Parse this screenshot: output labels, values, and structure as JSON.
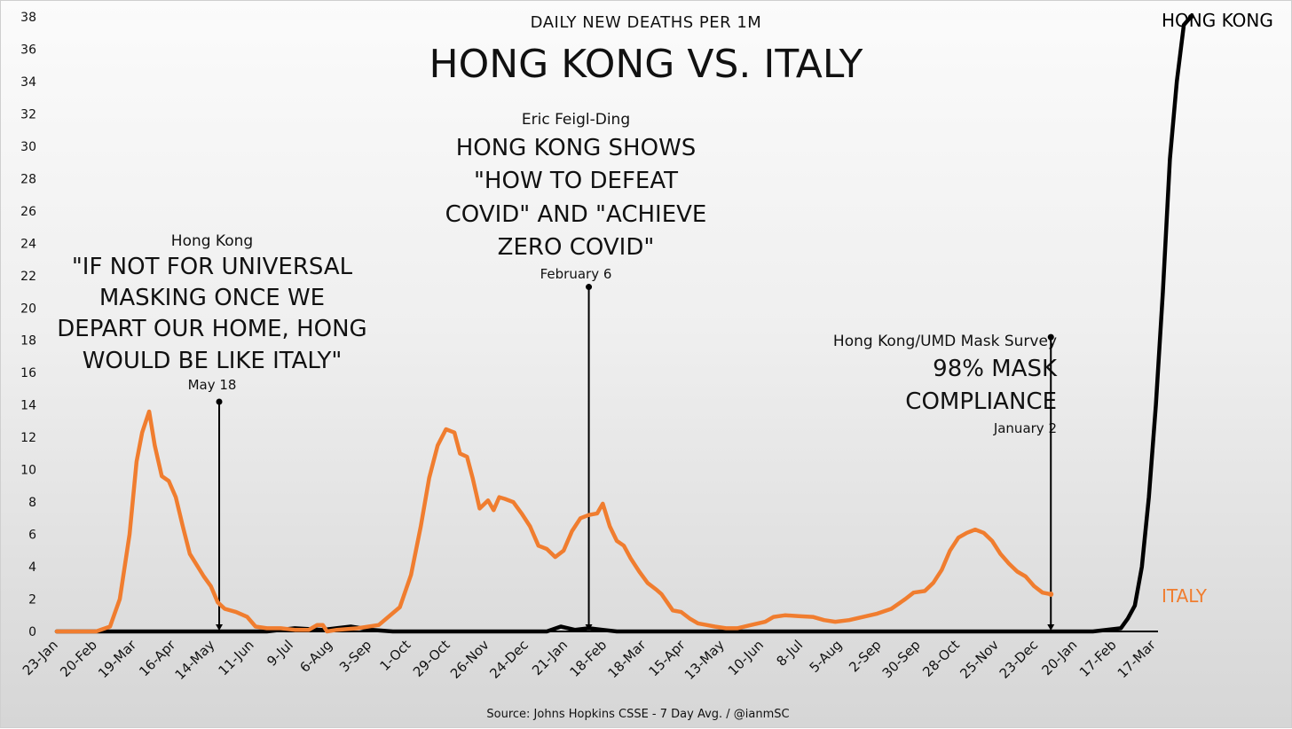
{
  "chart_data": {
    "type": "line",
    "subtitle": "DAILY NEW DEATHS PER 1M",
    "title": "HONG KONG VS. ITALY",
    "source": "Source: Johns Hopkins CSSE - 7 Day Avg. / @ianmSC",
    "ylim": [
      0,
      38
    ],
    "y_ticks": [
      "0",
      "2",
      "4",
      "6",
      "8",
      "10",
      "12",
      "14",
      "16",
      "18",
      "20",
      "22",
      "24",
      "26",
      "28",
      "30",
      "32",
      "34",
      "36",
      "38"
    ],
    "x_ticks": [
      "23-Jan",
      "20-Feb",
      "19-Mar",
      "16-Apr",
      "14-May",
      "11-Jun",
      "9-Jul",
      "6-Aug",
      "3-Sep",
      "1-Oct",
      "29-Oct",
      "26-Nov",
      "24-Dec",
      "21-Jan",
      "18-Feb",
      "18-Mar",
      "15-Apr",
      "13-May",
      "10-Jun",
      "8-Jul",
      "5-Aug",
      "2-Sep",
      "30-Sep",
      "28-Oct",
      "25-Nov",
      "23-Dec",
      "20-Jan",
      "17-Feb",
      "17-Mar"
    ],
    "series": [
      {
        "name": "HONG KONG",
        "color": "#000000",
        "points": [
          [
            0,
            0
          ],
          [
            150,
            0
          ],
          [
            170,
            0.2
          ],
          [
            190,
            0.1
          ],
          [
            210,
            0.3
          ],
          [
            225,
            0.1
          ],
          [
            240,
            0
          ],
          [
            350,
            0
          ],
          [
            360,
            0.3
          ],
          [
            370,
            0.1
          ],
          [
            380,
            0.2
          ],
          [
            390,
            0.1
          ],
          [
            400,
            0
          ],
          [
            740,
            0
          ],
          [
            760,
            0.2
          ],
          [
            765,
            0.8
          ],
          [
            770,
            1.6
          ],
          [
            775,
            4
          ],
          [
            780,
            8.3
          ],
          [
            785,
            14
          ],
          [
            790,
            21
          ],
          [
            795,
            29.2
          ],
          [
            800,
            34
          ],
          [
            805,
            37.5
          ],
          [
            810,
            38
          ]
        ]
      },
      {
        "name": "ITALY",
        "color": "#F07D2F",
        "points": [
          [
            0,
            0
          ],
          [
            28,
            0
          ],
          [
            38,
            0.3
          ],
          [
            45,
            2
          ],
          [
            52,
            6
          ],
          [
            57,
            10.5
          ],
          [
            61,
            12.3
          ],
          [
            66,
            13.6
          ],
          [
            70,
            11.5
          ],
          [
            75,
            9.6
          ],
          [
            80,
            9.3
          ],
          [
            85,
            8.3
          ],
          [
            90,
            6.5
          ],
          [
            95,
            4.8
          ],
          [
            100,
            4.1
          ],
          [
            105,
            3.4
          ],
          [
            110,
            2.8
          ],
          [
            115,
            1.8
          ],
          [
            120,
            1.4
          ],
          [
            128,
            1.2
          ],
          [
            136,
            0.9
          ],
          [
            142,
            0.3
          ],
          [
            150,
            0.2
          ],
          [
            160,
            0.2
          ],
          [
            170,
            0.1
          ],
          [
            180,
            0.1
          ],
          [
            186,
            0.4
          ],
          [
            190,
            0.4
          ],
          [
            193,
            0
          ],
          [
            200,
            0.1
          ],
          [
            215,
            0.2
          ],
          [
            230,
            0.4
          ],
          [
            245,
            1.5
          ],
          [
            253,
            3.5
          ],
          [
            260,
            6.5
          ],
          [
            266,
            9.5
          ],
          [
            272,
            11.5
          ],
          [
            278,
            12.5
          ],
          [
            284,
            12.3
          ],
          [
            288,
            11
          ],
          [
            293,
            10.8
          ],
          [
            297,
            9.5
          ],
          [
            302,
            7.6
          ],
          [
            308,
            8.1
          ],
          [
            312,
            7.5
          ],
          [
            316,
            8.3
          ],
          [
            320,
            8.2
          ],
          [
            326,
            8
          ],
          [
            332,
            7.3
          ],
          [
            338,
            6.5
          ],
          [
            344,
            5.3
          ],
          [
            350,
            5.1
          ],
          [
            356,
            4.6
          ],
          [
            362,
            5
          ],
          [
            368,
            6.2
          ],
          [
            374,
            7
          ],
          [
            380,
            7.2
          ],
          [
            386,
            7.3
          ],
          [
            390,
            7.9
          ],
          [
            395,
            6.5
          ],
          [
            400,
            5.6
          ],
          [
            405,
            5.3
          ],
          [
            410,
            4.5
          ],
          [
            416,
            3.7
          ],
          [
            422,
            3
          ],
          [
            428,
            2.6
          ],
          [
            432,
            2.3
          ],
          [
            436,
            1.8
          ],
          [
            440,
            1.3
          ],
          [
            446,
            1.2
          ],
          [
            452,
            0.8
          ],
          [
            458,
            0.5
          ],
          [
            464,
            0.4
          ],
          [
            470,
            0.3
          ],
          [
            478,
            0.2
          ],
          [
            486,
            0.2
          ],
          [
            496,
            0.4
          ],
          [
            506,
            0.6
          ],
          [
            512,
            0.9
          ],
          [
            520,
            1
          ],
          [
            530,
            0.95
          ],
          [
            540,
            0.9
          ],
          [
            548,
            0.7
          ],
          [
            556,
            0.6
          ],
          [
            566,
            0.7
          ],
          [
            576,
            0.9
          ],
          [
            586,
            1.1
          ],
          [
            596,
            1.4
          ],
          [
            606,
            2
          ],
          [
            612,
            2.4
          ],
          [
            620,
            2.5
          ],
          [
            626,
            3
          ],
          [
            632,
            3.8
          ],
          [
            638,
            5
          ],
          [
            644,
            5.8
          ],
          [
            650,
            6.1
          ],
          [
            656,
            6.3
          ],
          [
            662,
            6.1
          ],
          [
            668,
            5.6
          ],
          [
            674,
            4.8
          ],
          [
            680,
            4.2
          ],
          [
            686,
            3.7
          ],
          [
            692,
            3.4
          ],
          [
            698,
            2.8
          ],
          [
            704,
            2.4
          ],
          [
            710,
            2.3
          ]
        ]
      }
    ]
  },
  "annotations": [
    {
      "attribution": "Hong Kong",
      "quote_lines": [
        "\"IF NOT FOR UNIVERSAL",
        "MASKING ONCE WE",
        "DEPART OUR HOME, HONG",
        "WOULD BE LIKE ITALY\""
      ],
      "date": "May 18",
      "day": 116,
      "marker_y": 14.2
    },
    {
      "attribution": "Eric Feigl-Ding",
      "quote_lines": [
        "HONG KONG SHOWS",
        "\"HOW TO DEFEAT",
        "COVID\" AND \"ACHIEVE",
        "ZERO COVID\""
      ],
      "date": "February 6",
      "day": 380,
      "marker_y": 21.3
    },
    {
      "attribution": "Hong Kong/UMD Mask Survey",
      "quote_lines": [
        "98% MASK",
        "COMPLIANCE"
      ],
      "date": "January 2",
      "day": 710,
      "marker_y": 18.2
    }
  ]
}
